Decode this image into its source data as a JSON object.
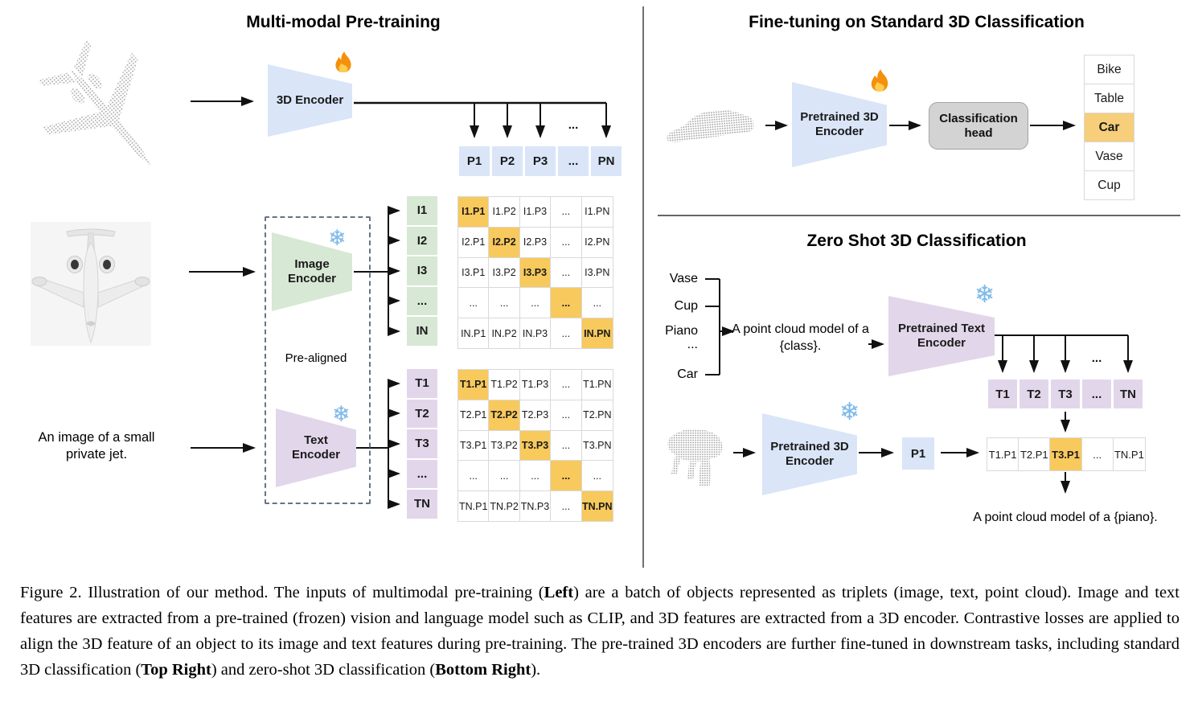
{
  "palette": {
    "blue": "#dae5f8",
    "green": "#d7e8d4",
    "purple": "#e2d6ea",
    "highlight": "#f8c95c",
    "highlight_soft": "#f7ce79",
    "gray_head": "#d3d3d3",
    "point_cloud_gray": "#a8a8a8"
  },
  "pretraining": {
    "title": "Multi-modal Pre-training",
    "encoder_3d_label": "3D Encoder",
    "encoder_3d_state_icon": "fire-icon",
    "p_cells": [
      "P1",
      "P2",
      "P3",
      "...",
      "PN"
    ],
    "branch_ellipsis": "...",
    "image_encoder_label": "Image Encoder",
    "image_encoder_state_icon": "snowflake-icon",
    "text_encoder_label": "Text Encoder",
    "text_encoder_state_icon": "snowflake-icon",
    "pre_aligned_label": "Pre-aligned",
    "input_text": "An image of a small private jet.",
    "i_labels": [
      "I1",
      "I2",
      "I3",
      "...",
      "IN"
    ],
    "i_matrix": [
      [
        "I1.P1",
        "I1.P2",
        "I1.P3",
        "...",
        "I1.PN"
      ],
      [
        "I2.P1",
        "I2.P2",
        "I2.P3",
        "...",
        "I2.PN"
      ],
      [
        "I3.P1",
        "I3.P2",
        "I3.P3",
        "...",
        "I3.PN"
      ],
      [
        "...",
        "...",
        "...",
        "...",
        "..."
      ],
      [
        "IN.P1",
        "IN.P2",
        "IN.P3",
        "...",
        "IN.PN"
      ]
    ],
    "t_labels": [
      "T1",
      "T2",
      "T3",
      "...",
      "TN"
    ],
    "t_matrix": [
      [
        "T1.P1",
        "T1.P2",
        "T1.P3",
        "...",
        "T1.PN"
      ],
      [
        "T2.P1",
        "T2.P2",
        "T2.P3",
        "...",
        "T2.PN"
      ],
      [
        "T3.P1",
        "T3.P2",
        "T3.P3",
        "...",
        "T3.PN"
      ],
      [
        "...",
        "...",
        "...",
        "...",
        "..."
      ],
      [
        "TN.P1",
        "TN.P2",
        "TN.P3",
        "...",
        "TN.PN"
      ]
    ]
  },
  "finetune": {
    "title": "Fine-tuning on Standard 3D Classification",
    "encoder_label": "Pretrained 3D Encoder",
    "encoder_state_icon": "fire-icon",
    "head_label": "Classification head",
    "classes": [
      "Bike",
      "Table",
      "Car",
      "Vase",
      "Cup"
    ],
    "highlighted_class": "Car"
  },
  "zero_shot": {
    "title": "Zero Shot 3D Classification",
    "class_list": [
      "Vase",
      "Cup",
      "Piano",
      "...",
      "Car"
    ],
    "prompt": "A point cloud model of a {class}.",
    "text_encoder_label": "Pretrained Text Encoder",
    "text_encoder_state_icon": "snowflake-icon",
    "t_cells": [
      "T1",
      "T2",
      "T3",
      "...",
      "TN"
    ],
    "branch_ellipsis": "...",
    "encoder_3d_label": "Pretrained 3D Encoder",
    "encoder_3d_state_icon": "snowflake-icon",
    "p_cell": "P1",
    "result_cells": [
      "T1.P1",
      "T2.P1",
      "T3.P1",
      "...",
      "TN.P1"
    ],
    "highlight_index": 2,
    "output_text": "A point cloud model of a {piano}."
  },
  "caption": {
    "segments": [
      {
        "text": "Figure 2. Illustration of our method.  The inputs of multimodal pre-training (",
        "bold": false
      },
      {
        "text": "Left",
        "bold": true
      },
      {
        "text": ") are a batch of objects represented as triplets (image, text, point cloud).  Image and text features are extracted from a pre-trained (frozen) vision and language model such as CLIP, and 3D features are extracted from a 3D encoder.  Contrastive losses are applied to align the 3D feature of an object to its image and text features during pre-training.  The pre-trained 3D encoders are further fine-tuned in downstream tasks, including standard 3D classification (",
        "bold": false
      },
      {
        "text": "Top Right",
        "bold": true
      },
      {
        "text": ") and zero-shot 3D classification (",
        "bold": false
      },
      {
        "text": "Bottom Right",
        "bold": true
      },
      {
        "text": ").",
        "bold": false
      }
    ]
  }
}
